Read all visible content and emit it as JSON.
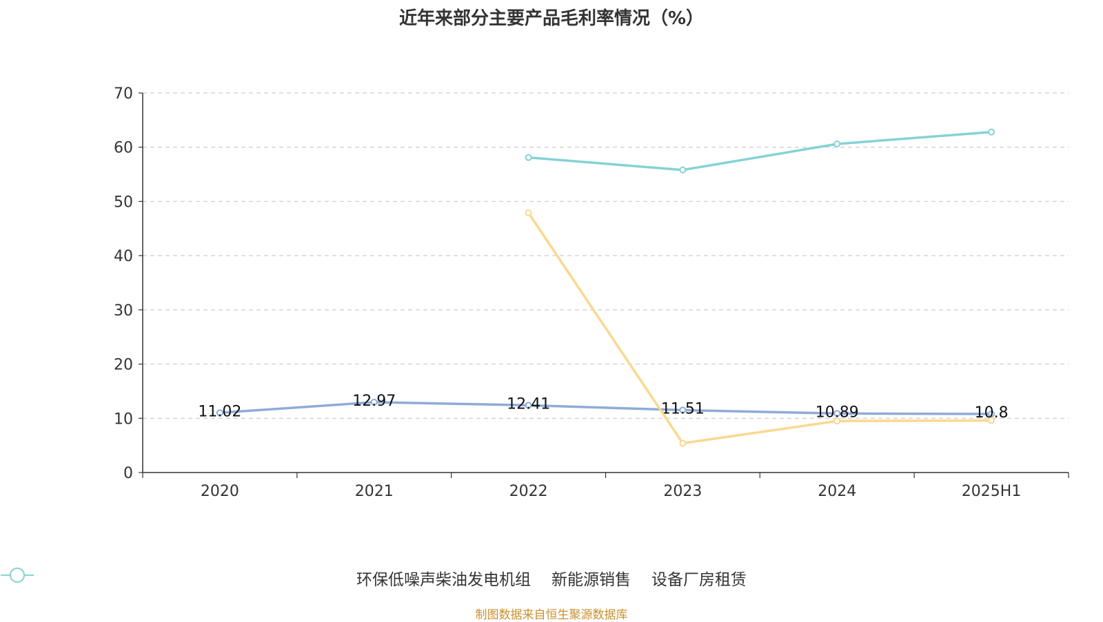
{
  "chart_data": {
    "type": "line",
    "title": "近年来部分主要产品毛利率情况（%）",
    "categories": [
      "2020",
      "2021",
      "2022",
      "2023",
      "2024",
      "2025H1"
    ],
    "ylim": [
      0,
      70
    ],
    "yticks": [
      0,
      10,
      20,
      30,
      40,
      50,
      60,
      70
    ],
    "grid": true,
    "legend_position": "bottom",
    "series": [
      {
        "name": "环保低噪声柴油发电机组",
        "color": "#8eabd8",
        "values": [
          11.02,
          12.97,
          12.41,
          11.51,
          10.89,
          10.8
        ],
        "labels": [
          "11.02",
          "12.97",
          "12.41",
          "11.51",
          "10.89",
          "10.8"
        ]
      },
      {
        "name": "新能源销售",
        "color": "#fad88e",
        "values": [
          null,
          null,
          47.9,
          5.4,
          9.5,
          9.6
        ],
        "labels": null
      },
      {
        "name": "设备厂房租赁",
        "color": "#85d3d3",
        "values": [
          null,
          null,
          58.1,
          55.8,
          60.6,
          62.8
        ],
        "labels": null
      }
    ]
  },
  "source": "制图数据来自恒生聚源数据库"
}
